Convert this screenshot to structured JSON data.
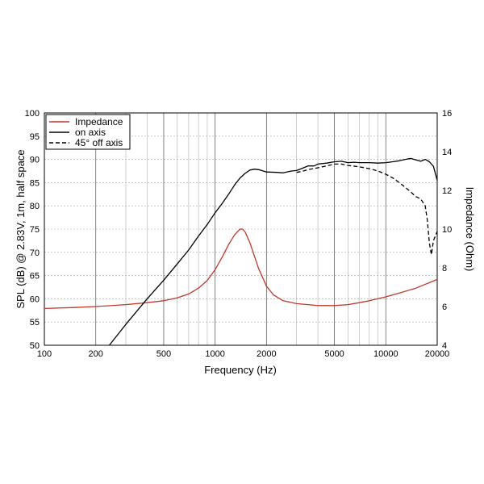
{
  "chart_data": {
    "type": "line",
    "xlabel": "Frequency (Hz)",
    "ylabel_left": "SPL (dB) @ 2.83V, 1m, half space",
    "ylabel_right": "Impedance (Ohm)",
    "x_scale": "log",
    "xlim": [
      100,
      20000
    ],
    "ylim_left": [
      50,
      100
    ],
    "ylim_right": [
      4,
      16
    ],
    "x_ticks": [
      100,
      200,
      500,
      1000,
      2000,
      5000,
      10000,
      20000
    ],
    "x_tick_labels": [
      "100",
      "200",
      "500",
      "1000",
      "2000",
      "5000",
      "10000",
      "20000"
    ],
    "y_ticks_left": [
      50,
      55,
      60,
      65,
      70,
      75,
      80,
      85,
      90,
      95,
      100
    ],
    "y_tick_labels_left": [
      "50",
      "55",
      "60",
      "65",
      "70",
      "75",
      "80",
      "85",
      "90",
      "95",
      "100"
    ],
    "y_ticks_right": [
      4,
      6,
      8,
      10,
      12,
      14,
      16
    ],
    "y_tick_labels_right": [
      "4",
      "6",
      "8",
      "10",
      "12",
      "14",
      "16"
    ],
    "grid": true,
    "legend_position": "top-left",
    "series": [
      {
        "name": "Impedance",
        "axis": "right",
        "color": "#c0392b",
        "dash": "solid",
        "x": [
          100,
          150,
          200,
          300,
          400,
          500,
          600,
          700,
          800,
          900,
          1000,
          1100,
          1200,
          1300,
          1400,
          1450,
          1500,
          1600,
          1700,
          1800,
          2000,
          2200,
          2500,
          3000,
          3500,
          4000,
          5000,
          6000,
          7000,
          8000,
          10000,
          12000,
          15000,
          20000
        ],
        "y": [
          5.9,
          5.95,
          6.0,
          6.1,
          6.2,
          6.3,
          6.45,
          6.65,
          6.95,
          7.35,
          7.9,
          8.55,
          9.2,
          9.7,
          10.0,
          10.0,
          9.85,
          9.3,
          8.6,
          7.95,
          7.05,
          6.6,
          6.3,
          6.15,
          6.1,
          6.05,
          6.05,
          6.1,
          6.2,
          6.3,
          6.5,
          6.7,
          6.95,
          7.4
        ]
      },
      {
        "name": "on axis",
        "axis": "left",
        "color": "#000000",
        "dash": "solid",
        "x": [
          240,
          300,
          400,
          500,
          600,
          700,
          800,
          900,
          1000,
          1100,
          1200,
          1300,
          1400,
          1500,
          1600,
          1700,
          1800,
          2000,
          2300,
          2500,
          2800,
          3000,
          3200,
          3500,
          3800,
          4000,
          4500,
          5000,
          5500,
          6000,
          6500,
          7000,
          8000,
          9000,
          10000,
          11000,
          12000,
          13000,
          14000,
          15000,
          16000,
          17000,
          18000,
          19000,
          20000
        ],
        "y": [
          50,
          54.5,
          60,
          64,
          67.5,
          70.5,
          73.5,
          76,
          78.5,
          80.5,
          82.5,
          84.5,
          86,
          87,
          87.7,
          87.9,
          87.8,
          87.3,
          87.2,
          87.1,
          87.5,
          87.6,
          88.0,
          88.6,
          88.6,
          89.0,
          89.2,
          89.5,
          89.6,
          89.3,
          89.4,
          89.3,
          89.3,
          89.2,
          89.3,
          89.5,
          89.7,
          90.0,
          90.2,
          89.9,
          89.6,
          90.0,
          89.5,
          88.5,
          85.5
        ]
      },
      {
        "name": "45° off axis",
        "axis": "left",
        "color": "#000000",
        "dash": "dashed",
        "x": [
          3000,
          3200,
          3500,
          4000,
          4500,
          5000,
          5500,
          6000,
          7000,
          8000,
          9000,
          10000,
          11000,
          12000,
          13000,
          14000,
          15000,
          16000,
          17000,
          17500,
          18000,
          18500,
          19000,
          19500,
          20000
        ],
        "y": [
          87.2,
          87.4,
          87.8,
          88.2,
          88.6,
          89.0,
          89.0,
          88.7,
          88.4,
          88.0,
          87.5,
          86.8,
          86.0,
          85.0,
          84.0,
          83.0,
          82.0,
          81.5,
          80.0,
          77.0,
          72.0,
          69.5,
          72.5,
          73.5,
          74.5
        ]
      }
    ]
  }
}
